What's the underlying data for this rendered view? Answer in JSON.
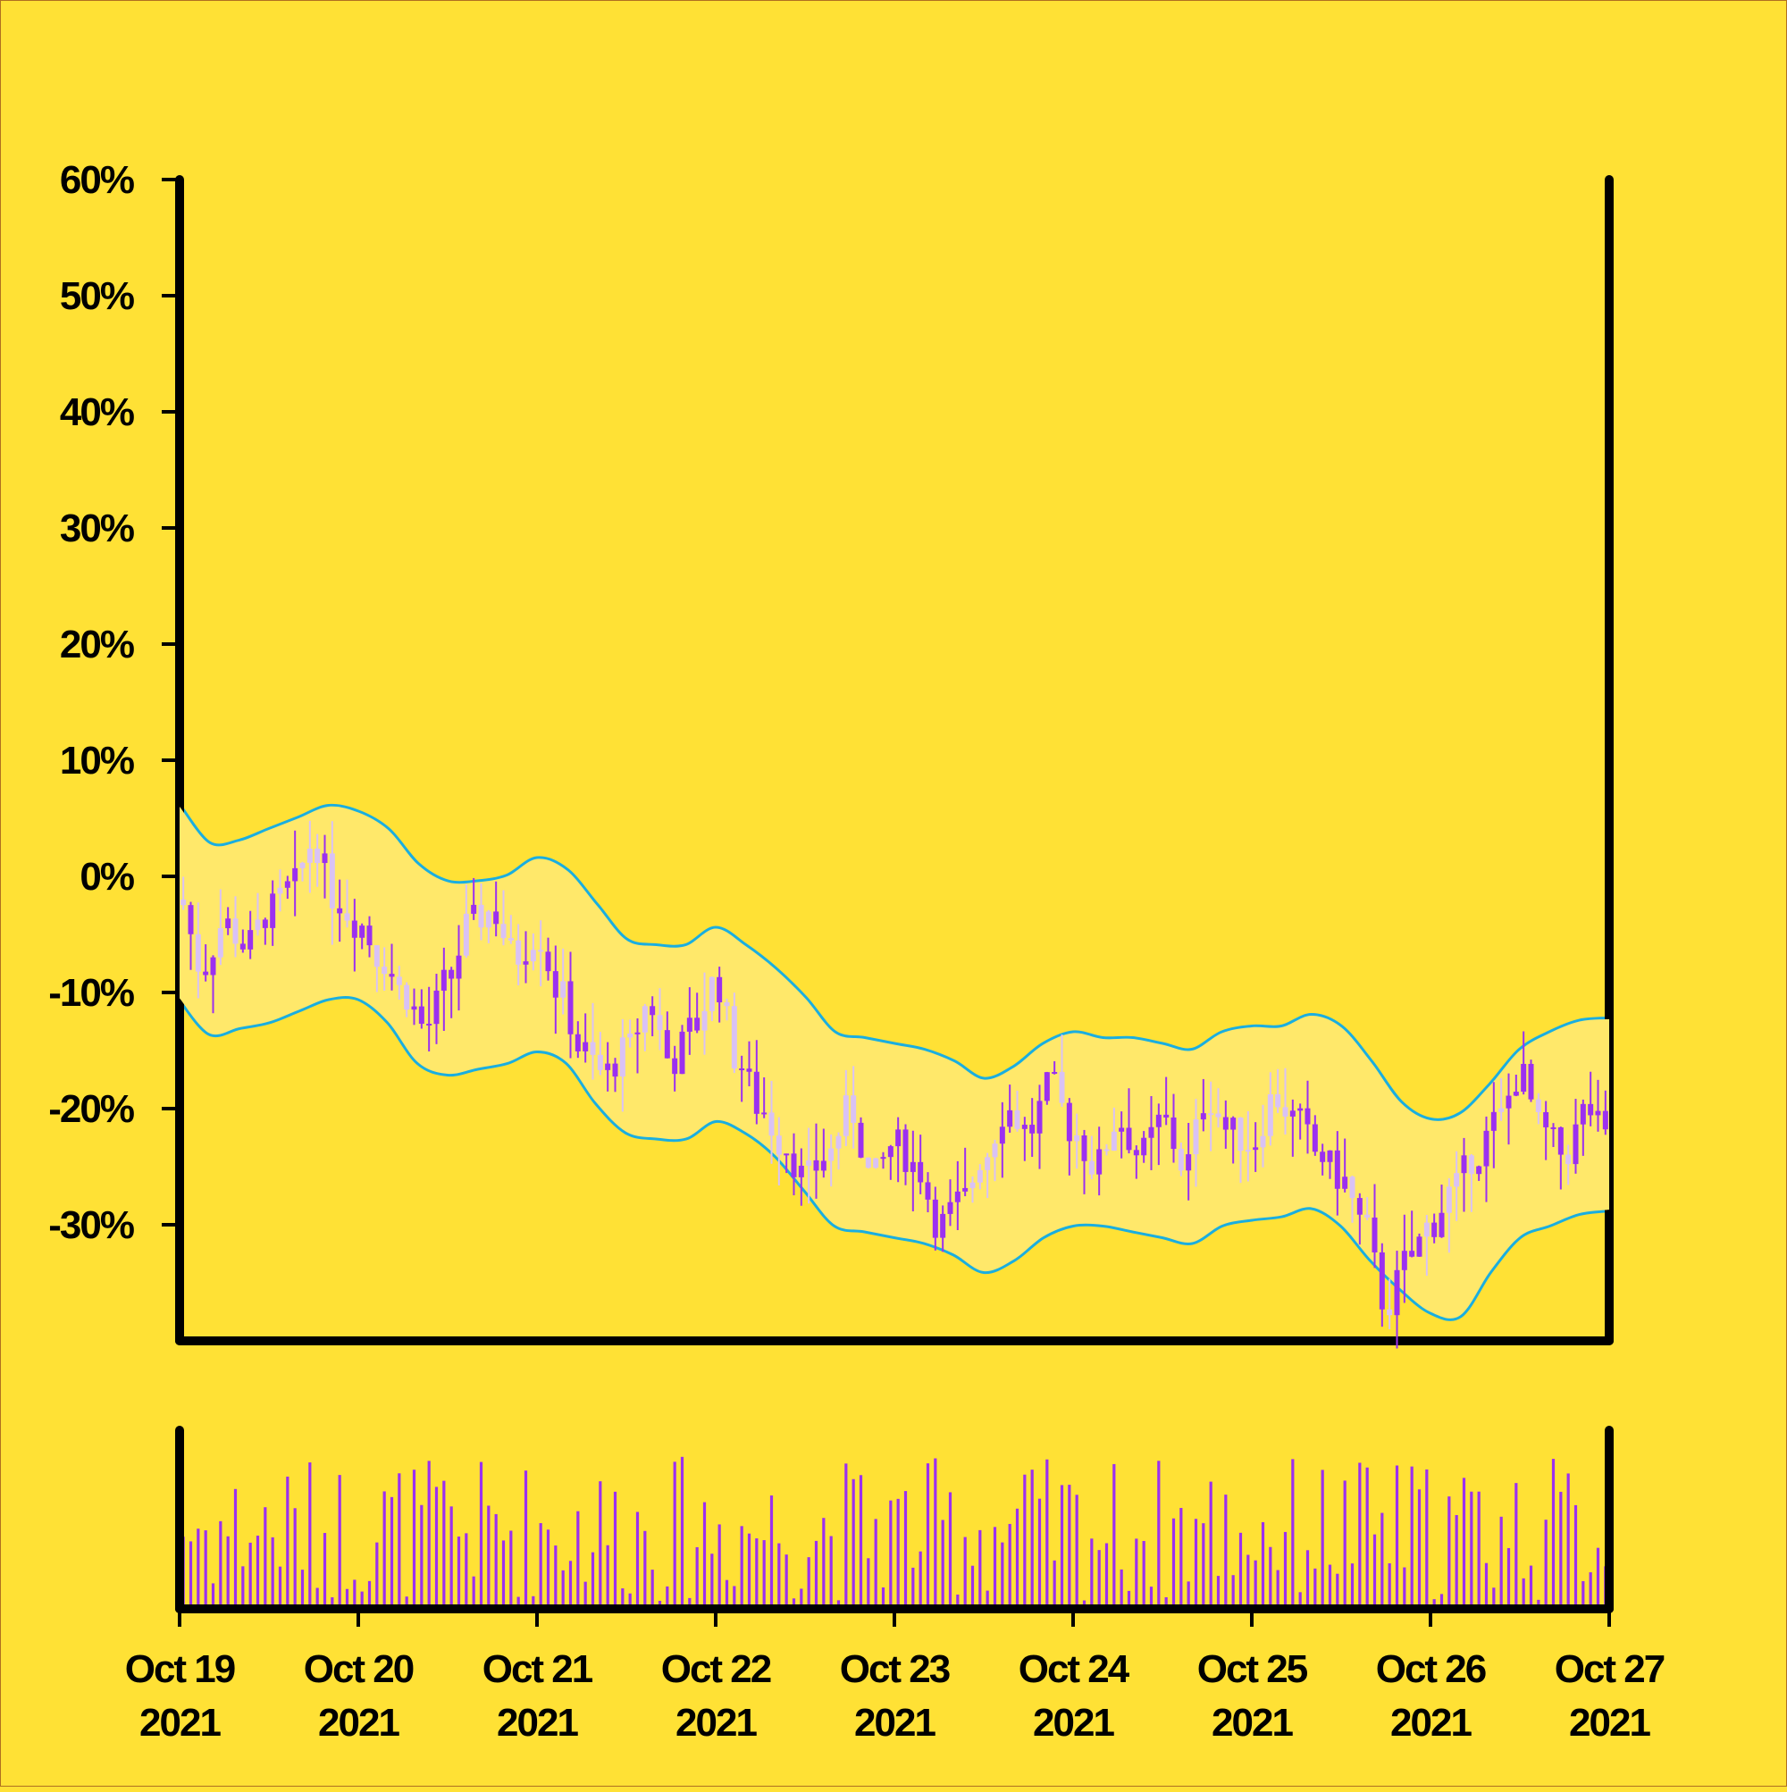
{
  "colors": {
    "background": "#FFE135",
    "band_fill": "#FFE86A",
    "band_line": "#1AAEE0",
    "candle": "#9B30F0",
    "candle_light": "#D9C2F5",
    "volume": "#9B30F0",
    "axis": "#000000"
  },
  "chart_data": {
    "type": "candlestick",
    "indicator": "bollinger-bands",
    "title": "",
    "xlabel": "",
    "ylabel": "",
    "ylim": [
      -0.4,
      0.6
    ],
    "x_range": [
      "2021-10-19",
      "2021-10-27"
    ],
    "y_tick_labels": [
      "60%",
      "50%",
      "40%",
      "30%",
      "20%",
      "10%",
      "0%",
      "-10%",
      "-20%",
      "-30%"
    ],
    "y_tick_values": [
      0.6,
      0.5,
      0.4,
      0.3,
      0.2,
      0.1,
      0.0,
      -0.1,
      -0.2,
      -0.3
    ],
    "x_tick_labels": [
      {
        "month_day": "Oct 19",
        "year": "2021"
      },
      {
        "month_day": "Oct 20",
        "year": "2021"
      },
      {
        "month_day": "Oct 21",
        "year": "2021"
      },
      {
        "month_day": "Oct 22",
        "year": "2021"
      },
      {
        "month_day": "Oct 23",
        "year": "2021"
      },
      {
        "month_day": "Oct 24",
        "year": "2021"
      },
      {
        "month_day": "Oct 25",
        "year": "2021"
      },
      {
        "month_day": "Oct 26",
        "year": "2021"
      },
      {
        "month_day": "Oct 27",
        "year": "2021"
      }
    ],
    "middle_band": [
      [
        "2021-10-19T00:00",
        -0.02
      ],
      [
        "2021-10-19T04:00",
        -0.055
      ],
      [
        "2021-10-19T08:00",
        -0.05
      ],
      [
        "2021-10-19T12:00",
        -0.045
      ],
      [
        "2021-10-19T16:00",
        -0.03
      ],
      [
        "2021-10-19T20:00",
        -0.025
      ],
      [
        "2021-10-20T00:00",
        -0.025
      ],
      [
        "2021-10-20T04:00",
        -0.04
      ],
      [
        "2021-10-20T08:00",
        -0.075
      ],
      [
        "2021-10-20T12:00",
        -0.09
      ],
      [
        "2021-10-20T16:00",
        -0.085
      ],
      [
        "2021-10-20T20:00",
        -0.08
      ],
      [
        "2021-10-21T00:00",
        -0.07
      ],
      [
        "2021-10-21T04:00",
        -0.08
      ],
      [
        "2021-10-21T08:00",
        -0.11
      ],
      [
        "2021-10-21T12:00",
        -0.14
      ],
      [
        "2021-10-21T16:00",
        -0.14
      ],
      [
        "2021-10-21T20:00",
        -0.14
      ],
      [
        "2021-10-22T00:00",
        -0.13
      ],
      [
        "2021-10-22T04:00",
        -0.14
      ],
      [
        "2021-10-22T08:00",
        -0.16
      ],
      [
        "2021-10-22T12:00",
        -0.185
      ],
      [
        "2021-10-22T16:00",
        -0.215
      ],
      [
        "2021-10-22T20:00",
        -0.22
      ],
      [
        "2021-10-23T00:00",
        -0.225
      ],
      [
        "2021-10-23T04:00",
        -0.23
      ],
      [
        "2021-10-23T08:00",
        -0.24
      ],
      [
        "2021-10-23T12:00",
        -0.255
      ],
      [
        "2021-10-23T16:00",
        -0.245
      ],
      [
        "2021-10-23T20:00",
        -0.225
      ],
      [
        "2021-10-24T00:00",
        -0.215
      ],
      [
        "2021-10-24T04:00",
        -0.22
      ],
      [
        "2021-10-24T08:00",
        -0.22
      ],
      [
        "2021-10-24T12:00",
        -0.225
      ],
      [
        "2021-10-24T16:00",
        -0.235
      ],
      [
        "2021-10-24T20:00",
        -0.22
      ],
      [
        "2021-10-25T00:00",
        -0.21
      ],
      [
        "2021-10-25T04:00",
        -0.21
      ],
      [
        "2021-10-25T08:00",
        -0.2
      ],
      [
        "2021-10-25T12:00",
        -0.21
      ],
      [
        "2021-10-25T16:00",
        -0.23
      ],
      [
        "2021-10-25T20:00",
        -0.255
      ],
      [
        "2021-10-26T00:00",
        -0.29
      ],
      [
        "2021-10-26T04:00",
        -0.295
      ],
      [
        "2021-10-26T08:00",
        -0.28
      ],
      [
        "2021-10-26T12:00",
        -0.24
      ],
      [
        "2021-10-26T16:00",
        -0.215
      ],
      [
        "2021-10-26T20:00",
        -0.21
      ],
      [
        "2021-10-27T00:00",
        -0.205
      ]
    ],
    "upper_band": [
      [
        "2021-10-19T00:00",
        0.06
      ],
      [
        "2021-10-19T04:00",
        0.028
      ],
      [
        "2021-10-19T08:00",
        0.03
      ],
      [
        "2021-10-19T12:00",
        0.04
      ],
      [
        "2021-10-19T16:00",
        0.05
      ],
      [
        "2021-10-19T20:00",
        0.06
      ],
      [
        "2021-10-20T00:00",
        0.055
      ],
      [
        "2021-10-20T04:00",
        0.04
      ],
      [
        "2021-10-20T08:00",
        0.01
      ],
      [
        "2021-10-20T12:00",
        -0.005
      ],
      [
        "2021-10-20T16:00",
        -0.005
      ],
      [
        "2021-10-20T20:00",
        0.0
      ],
      [
        "2021-10-21T00:00",
        0.015
      ],
      [
        "2021-10-21T04:00",
        0.005
      ],
      [
        "2021-10-21T08:00",
        -0.025
      ],
      [
        "2021-10-21T12:00",
        -0.055
      ],
      [
        "2021-10-21T16:00",
        -0.06
      ],
      [
        "2021-10-21T20:00",
        -0.06
      ],
      [
        "2021-10-22T00:00",
        -0.045
      ],
      [
        "2021-10-22T04:00",
        -0.06
      ],
      [
        "2021-10-22T08:00",
        -0.08
      ],
      [
        "2021-10-22T12:00",
        -0.105
      ],
      [
        "2021-10-22T16:00",
        -0.135
      ],
      [
        "2021-10-22T20:00",
        -0.14
      ],
      [
        "2021-10-23T00:00",
        -0.145
      ],
      [
        "2021-10-23T04:00",
        -0.15
      ],
      [
        "2021-10-23T08:00",
        -0.16
      ],
      [
        "2021-10-23T12:00",
        -0.175
      ],
      [
        "2021-10-23T16:00",
        -0.165
      ],
      [
        "2021-10-23T20:00",
        -0.145
      ],
      [
        "2021-10-24T00:00",
        -0.135
      ],
      [
        "2021-10-24T04:00",
        -0.14
      ],
      [
        "2021-10-24T08:00",
        -0.14
      ],
      [
        "2021-10-24T12:00",
        -0.145
      ],
      [
        "2021-10-24T16:00",
        -0.15
      ],
      [
        "2021-10-24T20:00",
        -0.135
      ],
      [
        "2021-10-25T00:00",
        -0.13
      ],
      [
        "2021-10-25T04:00",
        -0.13
      ],
      [
        "2021-10-25T08:00",
        -0.12
      ],
      [
        "2021-10-25T12:00",
        -0.13
      ],
      [
        "2021-10-25T16:00",
        -0.16
      ],
      [
        "2021-10-25T20:00",
        -0.195
      ],
      [
        "2021-10-26T00:00",
        -0.21
      ],
      [
        "2021-10-26T04:00",
        -0.205
      ],
      [
        "2021-10-26T08:00",
        -0.18
      ],
      [
        "2021-10-26T12:00",
        -0.15
      ],
      [
        "2021-10-26T16:00",
        -0.135
      ],
      [
        "2021-10-26T20:00",
        -0.125
      ],
      [
        "2021-10-27T00:00",
        -0.123
      ]
    ],
    "lower_band": [
      [
        "2021-10-19T00:00",
        -0.105
      ],
      [
        "2021-10-19T04:00",
        -0.135
      ],
      [
        "2021-10-19T08:00",
        -0.13
      ],
      [
        "2021-10-19T12:00",
        -0.125
      ],
      [
        "2021-10-19T16:00",
        -0.115
      ],
      [
        "2021-10-19T20:00",
        -0.105
      ],
      [
        "2021-10-20T00:00",
        -0.105
      ],
      [
        "2021-10-20T04:00",
        -0.125
      ],
      [
        "2021-10-20T08:00",
        -0.16
      ],
      [
        "2021-10-20T12:00",
        -0.17
      ],
      [
        "2021-10-20T16:00",
        -0.165
      ],
      [
        "2021-10-20T20:00",
        -0.16
      ],
      [
        "2021-10-21T00:00",
        -0.15
      ],
      [
        "2021-10-21T04:00",
        -0.16
      ],
      [
        "2021-10-21T08:00",
        -0.195
      ],
      [
        "2021-10-21T12:00",
        -0.22
      ],
      [
        "2021-10-21T16:00",
        -0.225
      ],
      [
        "2021-10-21T20:00",
        -0.225
      ],
      [
        "2021-10-22T00:00",
        -0.21
      ],
      [
        "2021-10-22T04:00",
        -0.22
      ],
      [
        "2021-10-22T08:00",
        -0.24
      ],
      [
        "2021-10-22T12:00",
        -0.27
      ],
      [
        "2021-10-22T16:00",
        -0.3
      ],
      [
        "2021-10-22T20:00",
        -0.305
      ],
      [
        "2021-10-23T00:00",
        -0.31
      ],
      [
        "2021-10-23T04:00",
        -0.315
      ],
      [
        "2021-10-23T08:00",
        -0.325
      ],
      [
        "2021-10-23T12:00",
        -0.34
      ],
      [
        "2021-10-23T16:00",
        -0.33
      ],
      [
        "2021-10-23T20:00",
        -0.31
      ],
      [
        "2021-10-24T00:00",
        -0.3
      ],
      [
        "2021-10-24T04:00",
        -0.3
      ],
      [
        "2021-10-24T08:00",
        -0.305
      ],
      [
        "2021-10-24T12:00",
        -0.31
      ],
      [
        "2021-10-24T16:00",
        -0.315
      ],
      [
        "2021-10-24T20:00",
        -0.3
      ],
      [
        "2021-10-25T00:00",
        -0.295
      ],
      [
        "2021-10-25T04:00",
        -0.292
      ],
      [
        "2021-10-25T08:00",
        -0.285
      ],
      [
        "2021-10-25T12:00",
        -0.3
      ],
      [
        "2021-10-25T16:00",
        -0.33
      ],
      [
        "2021-10-25T20:00",
        -0.355
      ],
      [
        "2021-10-26T00:00",
        -0.375
      ],
      [
        "2021-10-26T04:00",
        -0.378
      ],
      [
        "2021-10-26T08:00",
        -0.34
      ],
      [
        "2021-10-26T12:00",
        -0.31
      ],
      [
        "2021-10-26T16:00",
        -0.3
      ],
      [
        "2021-10-26T20:00",
        -0.29
      ],
      [
        "2021-10-27T00:00",
        -0.287
      ]
    ],
    "price_path": [
      [
        "2021-10-19T00:00",
        -0.02
      ],
      [
        "2021-10-19T03:00",
        -0.08
      ],
      [
        "2021-10-19T06:00",
        -0.04
      ],
      [
        "2021-10-19T09:00",
        -0.06
      ],
      [
        "2021-10-19T12:00",
        -0.03
      ],
      [
        "2021-10-19T15:00",
        -0.01
      ],
      [
        "2021-10-19T18:00",
        0.03
      ],
      [
        "2021-10-19T21:00",
        -0.02
      ],
      [
        "2021-10-20T00:00",
        -0.04
      ],
      [
        "2021-10-20T03:00",
        -0.07
      ],
      [
        "2021-10-20T06:00",
        -0.1
      ],
      [
        "2021-10-20T09:00",
        -0.13
      ],
      [
        "2021-10-20T12:00",
        -0.09
      ],
      [
        "2021-10-20T15:00",
        -0.04
      ],
      [
        "2021-10-20T18:00",
        -0.03
      ],
      [
        "2021-10-20T21:00",
        -0.07
      ],
      [
        "2021-10-21T00:00",
        -0.05
      ],
      [
        "2021-10-21T03:00",
        -0.1
      ],
      [
        "2021-10-21T06:00",
        -0.15
      ],
      [
        "2021-10-21T09:00",
        -0.17
      ],
      [
        "2021-10-21T12:00",
        -0.15
      ],
      [
        "2021-10-21T15:00",
        -0.11
      ],
      [
        "2021-10-21T18:00",
        -0.16
      ],
      [
        "2021-10-21T21:00",
        -0.13
      ],
      [
        "2021-10-22T00:00",
        -0.09
      ],
      [
        "2021-10-22T03:00",
        -0.16
      ],
      [
        "2021-10-22T06:00",
        -0.2
      ],
      [
        "2021-10-22T09:00",
        -0.23
      ],
      [
        "2021-10-22T12:00",
        -0.26
      ],
      [
        "2021-10-22T15:00",
        -0.24
      ],
      [
        "2021-10-22T18:00",
        -0.2
      ],
      [
        "2021-10-22T21:00",
        -0.26
      ],
      [
        "2021-10-23T00:00",
        -0.23
      ],
      [
        "2021-10-23T03:00",
        -0.25
      ],
      [
        "2021-10-23T06:00",
        -0.3
      ],
      [
        "2021-10-23T09:00",
        -0.28
      ],
      [
        "2021-10-23T12:00",
        -0.24
      ],
      [
        "2021-10-23T15:00",
        -0.2
      ],
      [
        "2021-10-23T18:00",
        -0.22
      ],
      [
        "2021-10-23T21:00",
        -0.18
      ],
      [
        "2021-10-24T00:00",
        -0.22
      ],
      [
        "2021-10-24T03:00",
        -0.25
      ],
      [
        "2021-10-24T06:00",
        -0.21
      ],
      [
        "2021-10-24T09:00",
        -0.24
      ],
      [
        "2021-10-24T12:00",
        -0.21
      ],
      [
        "2021-10-24T15:00",
        -0.25
      ],
      [
        "2021-10-24T18:00",
        -0.19
      ],
      [
        "2021-10-24T21:00",
        -0.22
      ],
      [
        "2021-10-25T00:00",
        -0.23
      ],
      [
        "2021-10-25T03:00",
        -0.19
      ],
      [
        "2021-10-25T06:00",
        -0.21
      ],
      [
        "2021-10-25T09:00",
        -0.24
      ],
      [
        "2021-10-25T12:00",
        -0.26
      ],
      [
        "2021-10-25T15:00",
        -0.3
      ],
      [
        "2021-10-25T18:00",
        -0.37
      ],
      [
        "2021-10-25T21:00",
        -0.33
      ],
      [
        "2021-10-26T00:00",
        -0.3
      ],
      [
        "2021-10-26T03:00",
        -0.27
      ],
      [
        "2021-10-26T06:00",
        -0.24
      ],
      [
        "2021-10-26T09:00",
        -0.21
      ],
      [
        "2021-10-26T12:00",
        -0.17
      ],
      [
        "2021-10-26T15:00",
        -0.22
      ],
      [
        "2021-10-26T18:00",
        -0.24
      ],
      [
        "2021-10-26T21:00",
        -0.2
      ],
      [
        "2021-10-27T00:00",
        -0.23
      ]
    ],
    "volume_range": [
      0,
      1.0
    ]
  }
}
